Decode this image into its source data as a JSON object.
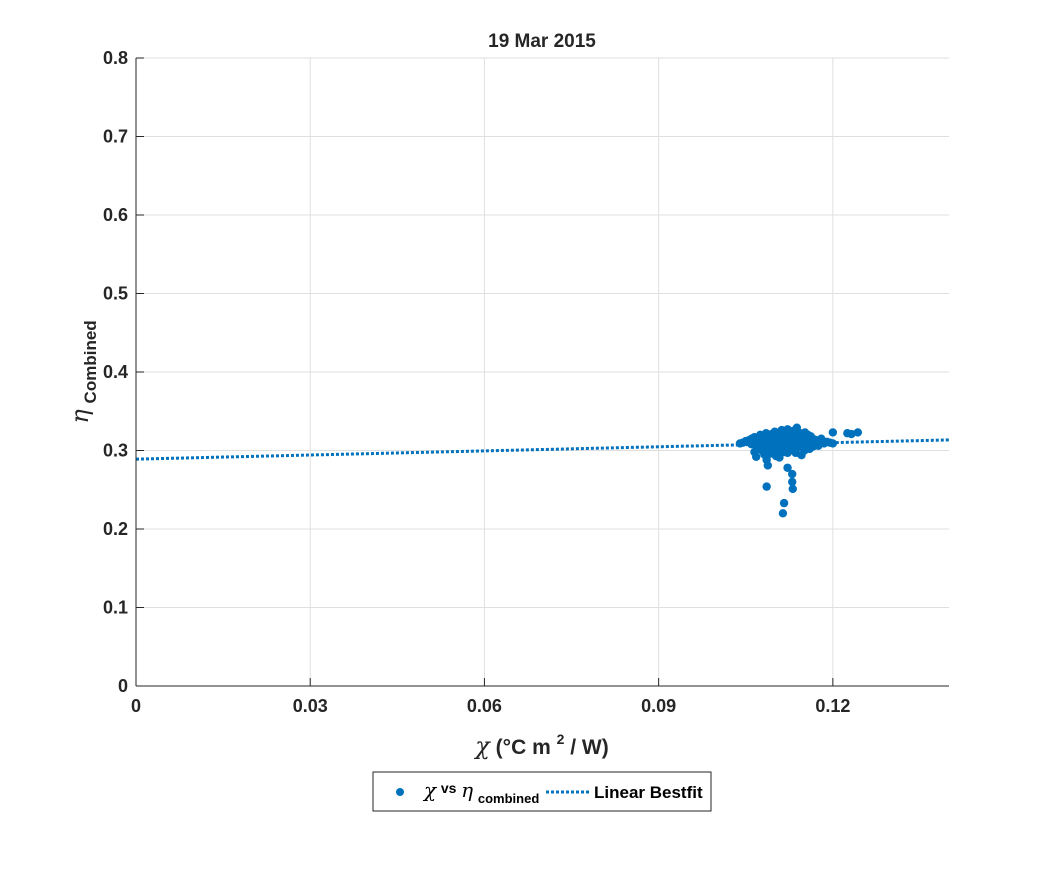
{
  "chart_data": {
    "type": "scatter",
    "title": "19 Mar 2015",
    "xlabel": {
      "symbol": "χ",
      "text": "(°C m",
      "sup": "2",
      "tail": " / W)"
    },
    "ylabel": {
      "symbol": "η",
      "sub": "Combined"
    },
    "xlim": [
      0,
      0.14
    ],
    "ylim": [
      0,
      0.8
    ],
    "xticks": [
      0,
      0.03,
      0.06,
      0.09,
      0.12
    ],
    "xtick_labels": [
      "0",
      "0.03",
      "0.06",
      "0.09",
      "0.12"
    ],
    "yticks": [
      0,
      0.1,
      0.2,
      0.3,
      0.4,
      0.5,
      0.6,
      0.7,
      0.8
    ],
    "ytick_labels": [
      "0",
      "0.1",
      "0.2",
      "0.3",
      "0.4",
      "0.5",
      "0.6",
      "0.7",
      "0.8"
    ],
    "grid": true,
    "legend_placement": "bottom-center-outside",
    "colors": {
      "series": "#0072bd",
      "grid": "#dfdfdf",
      "axis": "#262626"
    },
    "series": [
      {
        "type": "scatter",
        "legend": {
          "symbol": "χ",
          "vs": "vs",
          "symbol2": "η",
          "sub": "combined"
        },
        "points": [
          [
            0.104,
            0.309
          ],
          [
            0.1045,
            0.31
          ],
          [
            0.105,
            0.312
          ],
          [
            0.1055,
            0.313
          ],
          [
            0.106,
            0.315
          ],
          [
            0.1065,
            0.317
          ],
          [
            0.106,
            0.308
          ],
          [
            0.1065,
            0.298
          ],
          [
            0.1068,
            0.292
          ],
          [
            0.107,
            0.314
          ],
          [
            0.1072,
            0.305
          ],
          [
            0.1075,
            0.32
          ],
          [
            0.1078,
            0.3
          ],
          [
            0.108,
            0.318
          ],
          [
            0.1082,
            0.295
          ],
          [
            0.1083,
            0.31
          ],
          [
            0.1085,
            0.322
          ],
          [
            0.1086,
            0.288
          ],
          [
            0.1088,
            0.281
          ],
          [
            0.109,
            0.316
          ],
          [
            0.109,
            0.304
          ],
          [
            0.1092,
            0.296
          ],
          [
            0.1095,
            0.321
          ],
          [
            0.1096,
            0.309
          ],
          [
            0.1098,
            0.3
          ],
          [
            0.11,
            0.324
          ],
          [
            0.11,
            0.313
          ],
          [
            0.1102,
            0.293
          ],
          [
            0.1104,
            0.318
          ],
          [
            0.1105,
            0.306
          ],
          [
            0.1106,
            0.299
          ],
          [
            0.1108,
            0.322
          ],
          [
            0.111,
            0.311
          ],
          [
            0.111,
            0.302
          ],
          [
            0.1112,
            0.326
          ],
          [
            0.1113,
            0.316
          ],
          [
            0.1115,
            0.309
          ],
          [
            0.1116,
            0.298
          ],
          [
            0.1118,
            0.321
          ],
          [
            0.112,
            0.313
          ],
          [
            0.112,
            0.304
          ],
          [
            0.1122,
            0.327
          ],
          [
            0.1123,
            0.318
          ],
          [
            0.1125,
            0.31
          ],
          [
            0.1126,
            0.3
          ],
          [
            0.1128,
            0.323
          ],
          [
            0.113,
            0.314
          ],
          [
            0.113,
            0.306
          ],
          [
            0.1132,
            0.325
          ],
          [
            0.1134,
            0.317
          ],
          [
            0.1135,
            0.309
          ],
          [
            0.1136,
            0.301
          ],
          [
            0.1138,
            0.329
          ],
          [
            0.114,
            0.32
          ],
          [
            0.114,
            0.312
          ],
          [
            0.1142,
            0.305
          ],
          [
            0.1144,
            0.322
          ],
          [
            0.1145,
            0.314
          ],
          [
            0.1146,
            0.294
          ],
          [
            0.1148,
            0.318
          ],
          [
            0.115,
            0.31
          ],
          [
            0.1152,
            0.323
          ],
          [
            0.1154,
            0.316
          ],
          [
            0.1155,
            0.306
          ],
          [
            0.1157,
            0.32
          ],
          [
            0.1158,
            0.312
          ],
          [
            0.116,
            0.302
          ],
          [
            0.1162,
            0.318
          ],
          [
            0.1164,
            0.31
          ],
          [
            0.1166,
            0.305
          ],
          [
            0.1168,
            0.314
          ],
          [
            0.117,
            0.308
          ],
          [
            0.1172,
            0.313
          ],
          [
            0.1175,
            0.306
          ],
          [
            0.1178,
            0.311
          ],
          [
            0.118,
            0.315
          ],
          [
            0.1185,
            0.309
          ],
          [
            0.119,
            0.311
          ],
          [
            0.1195,
            0.31
          ],
          [
            0.12,
            0.323
          ],
          [
            0.12,
            0.309
          ],
          [
            0.1225,
            0.322
          ],
          [
            0.1232,
            0.321
          ],
          [
            0.1243,
            0.323
          ],
          [
            0.107,
            0.302
          ],
          [
            0.1078,
            0.309
          ],
          [
            0.1087,
            0.303
          ],
          [
            0.1094,
            0.311
          ],
          [
            0.1101,
            0.307
          ],
          [
            0.1108,
            0.301
          ],
          [
            0.1115,
            0.304
          ],
          [
            0.1122,
            0.297
          ],
          [
            0.1129,
            0.303
          ],
          [
            0.1136,
            0.297
          ],
          [
            0.1143,
            0.308
          ],
          [
            0.1151,
            0.3
          ],
          [
            0.1086,
            0.254
          ],
          [
            0.1108,
            0.291
          ],
          [
            0.1114,
            0.22
          ],
          [
            0.1116,
            0.233
          ],
          [
            0.1122,
            0.278
          ],
          [
            0.113,
            0.27
          ],
          [
            0.113,
            0.26
          ],
          [
            0.1131,
            0.251
          ]
        ]
      },
      {
        "type": "line",
        "style": "dotted",
        "legend": {
          "text": "Linear Bestfit"
        },
        "x": [
          0,
          0.14
        ],
        "y": [
          0.289,
          0.3135
        ]
      }
    ]
  }
}
